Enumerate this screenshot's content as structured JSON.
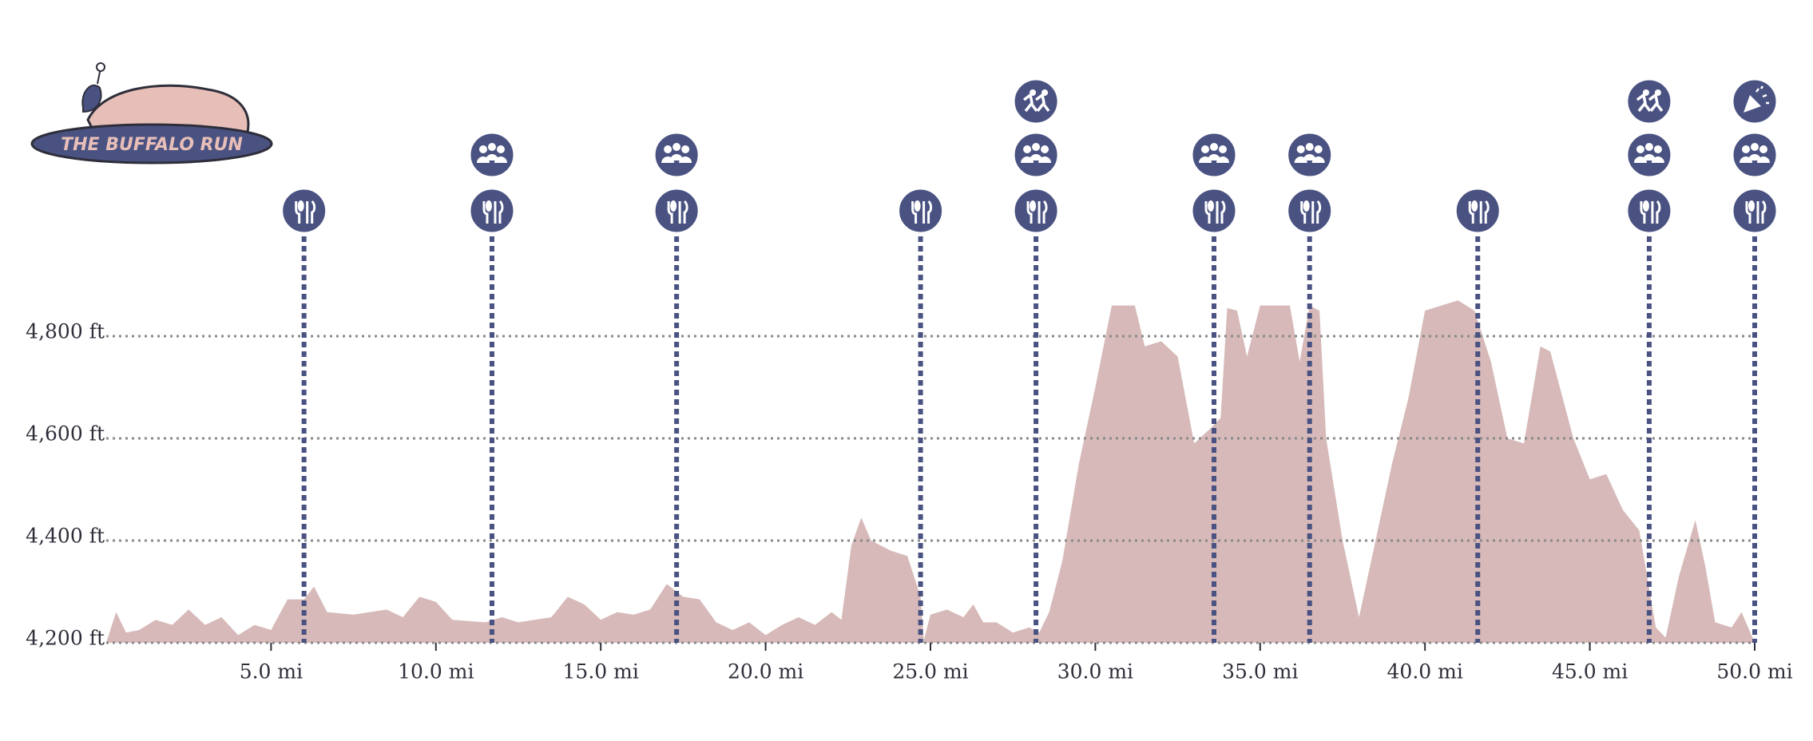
{
  "logo": {
    "text": "THE BUFFALO RUN"
  },
  "chart_data": {
    "type": "area",
    "color": "#d6b9b8",
    "station_color": "#4a5282",
    "x": [
      0,
      0.3,
      0.6,
      1.0,
      1.5,
      2.0,
      2.5,
      3.0,
      3.5,
      4.0,
      4.5,
      5.0,
      5.5,
      6.0,
      6.3,
      6.7,
      7.5,
      8.5,
      9.0,
      9.5,
      10.0,
      10.5,
      11.5,
      12.0,
      12.5,
      13.5,
      14.0,
      14.5,
      15.0,
      15.5,
      16.0,
      16.5,
      17.0,
      17.5,
      18.0,
      18.5,
      19.0,
      19.5,
      20.0,
      20.5,
      21.0,
      21.5,
      22.0,
      22.3,
      22.6,
      22.9,
      23.2,
      23.8,
      24.3,
      24.5,
      24.7,
      24.8,
      25.0,
      25.5,
      26.0,
      26.3,
      26.6,
      27.0,
      27.5,
      28.0,
      28.3,
      28.6,
      29.0,
      29.5,
      30.0,
      30.5,
      31.2,
      31.5,
      32.0,
      32.5,
      33.0,
      33.5,
      33.8,
      34.0,
      34.3,
      34.6,
      35.0,
      35.5,
      35.9,
      36.2,
      36.5,
      36.8,
      37.0,
      37.5,
      38.0,
      38.5,
      39.0,
      39.5,
      40.0,
      40.5,
      41.0,
      41.5,
      42.0,
      42.5,
      43.0,
      43.5,
      43.8,
      44.5,
      45.0,
      45.5,
      46.0,
      46.5,
      47.0,
      47.3,
      47.7,
      48.2,
      48.5,
      48.8,
      49.3,
      49.6,
      50.0
    ],
    "values": [
      4200,
      4260,
      4220,
      4225,
      4245,
      4235,
      4265,
      4235,
      4250,
      4215,
      4235,
      4225,
      4285,
      4285,
      4310,
      4260,
      4255,
      4265,
      4250,
      4290,
      4280,
      4245,
      4240,
      4250,
      4240,
      4250,
      4290,
      4275,
      4245,
      4260,
      4255,
      4265,
      4315,
      4290,
      4285,
      4240,
      4225,
      4240,
      4215,
      4235,
      4250,
      4235,
      4260,
      4245,
      4390,
      4445,
      4400,
      4380,
      4370,
      4330,
      4290,
      4205,
      4255,
      4265,
      4250,
      4275,
      4240,
      4240,
      4220,
      4230,
      4220,
      4260,
      4360,
      4550,
      4700,
      4860,
      4860,
      4780,
      4790,
      4760,
      4590,
      4620,
      4640,
      4855,
      4850,
      4760,
      4860,
      4860,
      4860,
      4750,
      4860,
      4850,
      4600,
      4400,
      4250,
      4400,
      4550,
      4680,
      4850,
      4860,
      4870,
      4850,
      4750,
      4600,
      4590,
      4780,
      4770,
      4600,
      4520,
      4530,
      4460,
      4420,
      4230,
      4210,
      4330,
      4440,
      4350,
      4240,
      4230,
      4260,
      4200
    ],
    "xlim": [
      0,
      50
    ],
    "ylim": [
      4200,
      4800
    ],
    "xticks": [
      {
        "value": 5,
        "label": "5.0 mi"
      },
      {
        "value": 10,
        "label": "10.0 mi"
      },
      {
        "value": 15,
        "label": "15.0 mi"
      },
      {
        "value": 20,
        "label": "20.0 mi"
      },
      {
        "value": 25,
        "label": "25.0 mi"
      },
      {
        "value": 30,
        "label": "30.0 mi"
      },
      {
        "value": 35,
        "label": "35.0 mi"
      },
      {
        "value": 40,
        "label": "40.0 mi"
      },
      {
        "value": 45,
        "label": "45.0 mi"
      },
      {
        "value": 50,
        "label": "50.0 mi"
      }
    ],
    "yticks": [
      {
        "value": 4200,
        "label": "4,200 ft"
      },
      {
        "value": 4400,
        "label": "4,400 ft"
      },
      {
        "value": 4600,
        "label": "4,600 ft"
      },
      {
        "value": 4800,
        "label": "4,800 ft"
      }
    ],
    "grid": true,
    "aid_stations": [
      6.0,
      11.7,
      17.3,
      24.7,
      28.2,
      33.6,
      36.5,
      41.6,
      46.8,
      50
    ],
    "crew_access": [
      11.7,
      17.3,
      28.2,
      33.6,
      36.5,
      46.8,
      50
    ],
    "pacer_pickup": [
      28.2,
      46.8
    ],
    "finish": [
      50
    ]
  }
}
